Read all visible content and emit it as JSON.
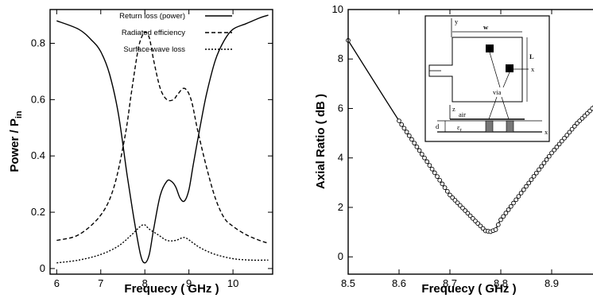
{
  "chart_data": [
    {
      "type": "line",
      "xlabel": "Frequecy ( GHz )",
      "ylabel": "Power / P",
      "ylabel_sub": "in",
      "xlim": [
        5.85,
        10.9
      ],
      "ylim": [
        -0.02,
        0.92
      ],
      "xticks": [
        6,
        7,
        8,
        9,
        10
      ],
      "xtick_labels": [
        "6",
        "7",
        "8",
        "9",
        "10"
      ],
      "yticks": [
        0,
        0.2,
        0.4,
        0.6,
        0.8
      ],
      "ytick_labels": [
        "0",
        "0.2",
        "0.4",
        "0.6",
        "0.8"
      ],
      "legend_position": "top-right",
      "series": [
        {
          "name": "Return loss (power)",
          "dash": "solid",
          "x": [
            6.0,
            6.5,
            6.8,
            7.0,
            7.2,
            7.4,
            7.6,
            7.75,
            7.9,
            8.0,
            8.1,
            8.2,
            8.35,
            8.5,
            8.6,
            8.7,
            8.8,
            8.9,
            9.0,
            9.1,
            9.25,
            9.4,
            9.6,
            9.8,
            10.0,
            10.3,
            10.6,
            10.8
          ],
          "y": [
            0.88,
            0.85,
            0.81,
            0.77,
            0.69,
            0.55,
            0.33,
            0.18,
            0.05,
            0.02,
            0.05,
            0.14,
            0.26,
            0.31,
            0.31,
            0.29,
            0.25,
            0.24,
            0.28,
            0.37,
            0.5,
            0.62,
            0.74,
            0.81,
            0.85,
            0.87,
            0.89,
            0.9
          ]
        },
        {
          "name": "Radiated efficiency",
          "dash": "dashed",
          "x": [
            6.0,
            6.5,
            7.0,
            7.3,
            7.55,
            7.7,
            7.85,
            7.95,
            8.0,
            8.1,
            8.2,
            8.35,
            8.5,
            8.65,
            8.75,
            8.9,
            9.05,
            9.2,
            9.4,
            9.6,
            9.8,
            10.0,
            10.3,
            10.6,
            10.8
          ],
          "y": [
            0.1,
            0.12,
            0.19,
            0.29,
            0.47,
            0.63,
            0.78,
            0.83,
            0.84,
            0.82,
            0.74,
            0.64,
            0.6,
            0.6,
            0.62,
            0.64,
            0.6,
            0.49,
            0.36,
            0.25,
            0.18,
            0.15,
            0.12,
            0.1,
            0.09
          ]
        },
        {
          "name": "Surface-wave loss",
          "dash": "dotted",
          "x": [
            6.0,
            6.5,
            7.0,
            7.4,
            7.7,
            7.9,
            8.0,
            8.1,
            8.3,
            8.5,
            8.7,
            8.9,
            9.1,
            9.3,
            9.6,
            10.0,
            10.4,
            10.8
          ],
          "y": [
            0.02,
            0.03,
            0.05,
            0.08,
            0.12,
            0.15,
            0.155,
            0.14,
            0.12,
            0.1,
            0.1,
            0.11,
            0.09,
            0.07,
            0.05,
            0.035,
            0.03,
            0.03
          ]
        }
      ]
    },
    {
      "type": "line",
      "xlabel": "Frequecy ( GHz )",
      "ylabel": "Axial Ratio ( dB )",
      "xlim": [
        8.5,
        9.0
      ],
      "ylim": [
        -0.7,
        10.0
      ],
      "xticks": [
        8.5,
        8.6,
        8.7,
        8.8,
        8.9
      ],
      "xtick_labels": [
        "8.5",
        "8.6",
        "8.7",
        "8.8",
        "8.9"
      ],
      "yticks": [
        0,
        2,
        4,
        6,
        8,
        10
      ],
      "ytick_labels": [
        "0",
        "2",
        "4",
        "6",
        "8",
        "10"
      ],
      "markers": "open-circle",
      "marker_start": 8.6,
      "marker_step": 0.005,
      "series": [
        {
          "x": [
            8.5,
            8.6,
            8.65,
            8.7,
            8.75,
            8.77,
            8.78,
            8.79,
            8.8,
            8.85,
            8.9,
            8.95,
            9.0
          ],
          "y": [
            8.75,
            5.5,
            4.0,
            2.5,
            1.45,
            1.05,
            1.02,
            1.1,
            1.5,
            2.85,
            4.2,
            5.4,
            6.4
          ]
        }
      ],
      "inset_labels": {
        "w": "w",
        "L": "L",
        "y": "y",
        "x_top": "x",
        "via": "via",
        "z": "z",
        "air": "air",
        "d": "d",
        "eps": "ε",
        "eps_sub": "r",
        "x_bottom": "x"
      }
    }
  ]
}
